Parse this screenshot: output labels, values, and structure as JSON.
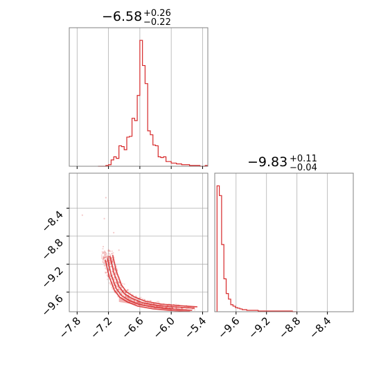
{
  "chart_data": {
    "type": "corner",
    "colors": {
      "series": "#d62728",
      "grid": "#b0b0b0",
      "frame": "#808080"
    },
    "parameters": [
      {
        "title_value": "−6.58",
        "title_plus": "+0.26",
        "title_minus": "−0.22"
      },
      {
        "title_value": "−9.83",
        "title_plus": "+0.11",
        "title_minus": "−0.04"
      }
    ],
    "hist_x": {
      "xlim": [
        -7.95,
        -5.3
      ],
      "bin_edges": [
        -7.4,
        -7.35,
        -7.3,
        -7.25,
        -7.2,
        -7.15,
        -7.1,
        -7.05,
        -7.0,
        -6.95,
        -6.9,
        -6.85,
        -6.8,
        -6.75,
        -6.7,
        -6.65,
        -6.6,
        -6.55,
        -6.5,
        -6.45,
        -6.4,
        -6.35,
        -6.3,
        -6.25,
        -6.2,
        -6.15,
        -6.1,
        -6.05,
        -6.0,
        -5.95,
        -5.9,
        -5.85,
        -5.8,
        -5.75,
        -5.7,
        -5.65,
        -5.6,
        -5.55,
        -5.5,
        -5.45,
        -5.4,
        -5.35,
        -5.3
      ],
      "counts": [
        0,
        0,
        0,
        1,
        2,
        8,
        12,
        10,
        26,
        25,
        21,
        37,
        38,
        61,
        58,
        90,
        160,
        128,
        105,
        45,
        40,
        27,
        26,
        12,
        11,
        12,
        6,
        6,
        4,
        4,
        3,
        3,
        2,
        2,
        2,
        1,
        1,
        1,
        1,
        0,
        0,
        1
      ],
      "ticks": [
        -7.8,
        -7.2,
        -6.6,
        -6.0,
        -5.4
      ]
    },
    "hist_y": {
      "xlim": [
        -9.88,
        -8.06
      ],
      "bin_edges": [
        -9.85,
        -9.82,
        -9.79,
        -9.76,
        -9.73,
        -9.7,
        -9.67,
        -9.64,
        -9.61,
        -9.58,
        -9.55,
        -9.52,
        -9.49,
        -9.46,
        -9.43,
        -9.4,
        -9.37,
        -9.34,
        -9.31,
        -9.28,
        -9.25,
        -9.22,
        -9.19,
        -9.16,
        -9.13,
        -9.1,
        -9.07,
        -9.04,
        -9.01,
        -8.98,
        -8.95,
        -8.92,
        -8.89,
        -8.86,
        -8.83,
        -8.8
      ],
      "counts": [
        180,
        166,
        96,
        47,
        26,
        18,
        10,
        8,
        6,
        5,
        4,
        3,
        3,
        2,
        2,
        2,
        2,
        2,
        1,
        1,
        1,
        1,
        1,
        1,
        1,
        1,
        1,
        1,
        1,
        1,
        1,
        1,
        1,
        0,
        0
      ],
      "ticks": [
        -9.6,
        -9.2,
        -8.8,
        -8.4
      ]
    },
    "scatter_2d": {
      "xlim": [
        -7.95,
        -5.3
      ],
      "ylim": [
        -9.88,
        -7.9
      ],
      "x_ticks": [
        -7.8,
        -7.2,
        -6.6,
        -6.0,
        -5.4
      ],
      "y_ticks": [
        -8.4,
        -8.8,
        -9.2,
        -9.6
      ],
      "contour_ridge": [
        [
          -7.22,
          -9.12
        ],
        [
          -7.15,
          -9.35
        ],
        [
          -7.05,
          -9.55
        ],
        [
          -6.95,
          -9.65
        ],
        [
          -6.8,
          -9.72
        ],
        [
          -6.6,
          -9.78
        ],
        [
          -6.3,
          -9.82
        ],
        [
          -6.0,
          -9.84
        ],
        [
          -5.6,
          -9.86
        ]
      ]
    },
    "tick_labels": {
      "x1": [
        "−7.8",
        "−7.2",
        "−6.6",
        "−6.0",
        "−5.4"
      ],
      "y1": [
        "−8.4",
        "−8.8",
        "−9.2",
        "−9.6"
      ],
      "x2": [
        "−9.6",
        "−9.2",
        "−8.8",
        "−8.4"
      ]
    }
  }
}
